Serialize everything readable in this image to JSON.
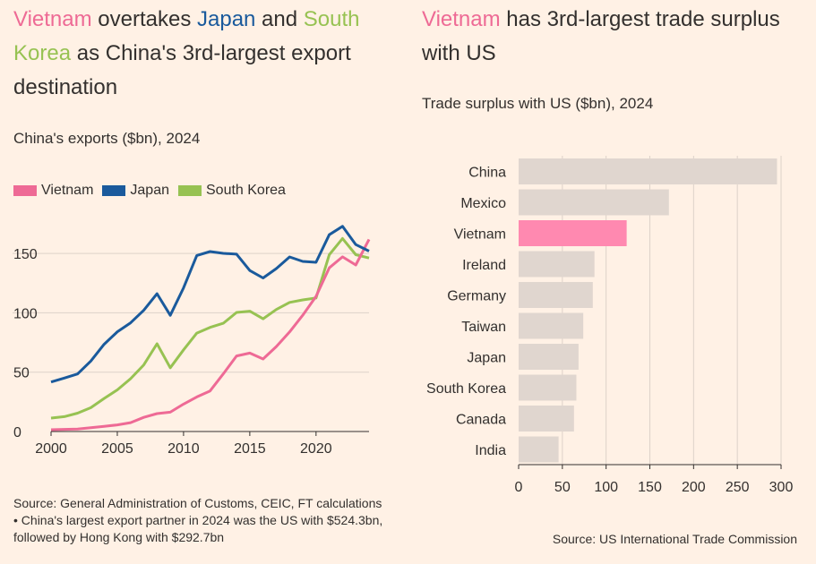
{
  "left": {
    "headline": {
      "parts": [
        {
          "text": "Vietnam",
          "color": "#ee6a95"
        },
        {
          "text": " overtakes ",
          "color": "#33302e"
        },
        {
          "text": "Japan",
          "color": "#1a5a9c"
        },
        {
          "text": " and ",
          "color": "#33302e"
        },
        {
          "text": "South Korea",
          "color": "#97c252"
        },
        {
          "text": " as China's 3rd-largest export destination",
          "color": "#33302e"
        }
      ]
    },
    "subtitle": "China's exports ($bn), 2024",
    "legend": [
      {
        "label": "Vietnam",
        "color": "#ee6a95"
      },
      {
        "label": "Japan",
        "color": "#1a5a9c"
      },
      {
        "label": "South Korea",
        "color": "#97c252"
      }
    ],
    "source": "Source: General Administration of Customs, CEIC, FT calculations • China's largest export partner in 2024 was the US with $524.3bn, followed by Hong Kong with $292.7bn"
  },
  "right": {
    "headline": {
      "parts": [
        {
          "text": "Vietnam",
          "color": "#ee6a95"
        },
        {
          "text": " has 3rd-largest trade surplus with US",
          "color": "#33302e"
        }
      ]
    },
    "subtitle": "Trade surplus with US ($bn), 2024",
    "source": "Source: US International Trade Commission"
  },
  "chart_data": [
    {
      "type": "line",
      "title": "China's exports ($bn), 2024",
      "xlabel": "",
      "ylabel": "",
      "xlim": [
        2000,
        2024
      ],
      "ylim": [
        0,
        175
      ],
      "xticks": [
        2000,
        2005,
        2010,
        2015,
        2020
      ],
      "yticks": [
        0,
        50,
        100,
        150
      ],
      "x": [
        2000,
        2001,
        2002,
        2003,
        2004,
        2005,
        2006,
        2007,
        2008,
        2009,
        2010,
        2011,
        2012,
        2013,
        2014,
        2015,
        2016,
        2017,
        2018,
        2019,
        2020,
        2021,
        2022,
        2023,
        2024
      ],
      "series": [
        {
          "name": "Vietnam",
          "color": "#ee6a95",
          "values": [
            1.5,
            1.8,
            2.1,
            3.2,
            4.3,
            5.6,
            7.5,
            11.9,
            15.1,
            16.3,
            23.1,
            29.1,
            34.2,
            48.6,
            63.7,
            66.1,
            61.1,
            71.6,
            83.9,
            98.0,
            113.8,
            137.9,
            147.2,
            140.3,
            161.9
          ]
        },
        {
          "name": "Japan",
          "color": "#1a5a9c",
          "values": [
            41.7,
            45.0,
            48.5,
            59.4,
            73.5,
            84.0,
            91.6,
            102.1,
            116.1,
            97.9,
            121.0,
            148.3,
            151.6,
            150.1,
            149.4,
            135.6,
            129.4,
            137.3,
            147.1,
            143.3,
            142.6,
            165.8,
            172.9,
            157.5,
            152.0
          ]
        },
        {
          "name": "South Korea",
          "color": "#97c252",
          "values": [
            11.3,
            12.5,
            15.5,
            20.1,
            27.8,
            35.1,
            44.5,
            56.1,
            73.9,
            53.7,
            68.8,
            82.9,
            87.7,
            91.2,
            100.3,
            101.4,
            95.0,
            102.8,
            108.8,
            110.9,
            112.5,
            148.9,
            162.6,
            149.0,
            146.2
          ]
        }
      ]
    },
    {
      "type": "bar",
      "orientation": "horizontal",
      "title": "Trade surplus with US ($bn), 2024",
      "xlabel": "",
      "ylabel": "",
      "xlim": [
        0,
        300
      ],
      "xticks": [
        0,
        50,
        100,
        150,
        200,
        250,
        300
      ],
      "categories": [
        "China",
        "Mexico",
        "Vietnam",
        "Ireland",
        "Germany",
        "Taiwan",
        "Japan",
        "South Korea",
        "Canada",
        "India"
      ],
      "values": [
        295.4,
        171.8,
        123.5,
        86.7,
        84.8,
        73.9,
        68.5,
        66.0,
        63.3,
        45.7
      ],
      "bar_color": "#e0d6cf",
      "highlight": {
        "category": "Vietnam",
        "color": "#ff89b0"
      }
    }
  ]
}
